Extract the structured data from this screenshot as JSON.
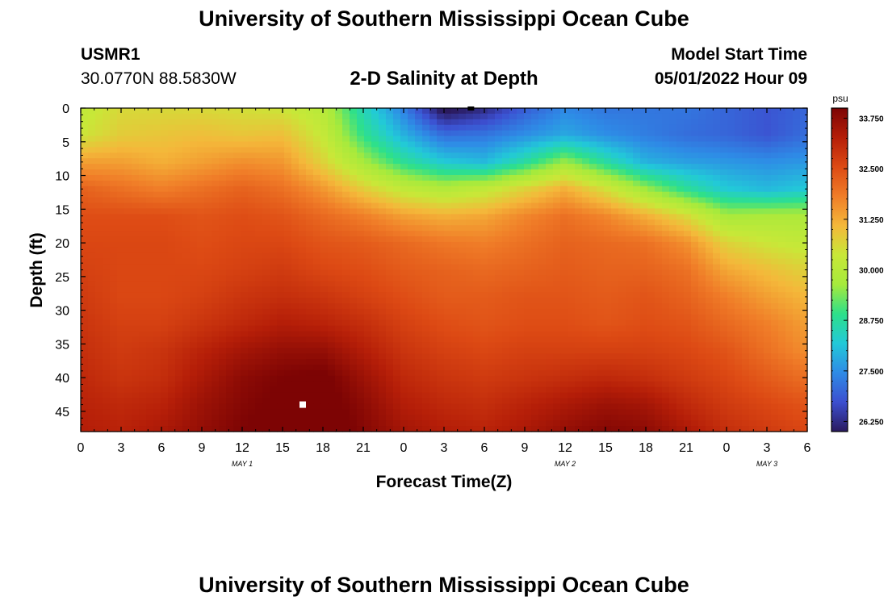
{
  "header": {
    "title": "University of Southern Mississippi Ocean Cube",
    "station_id": "USMR1",
    "station_coords": "30.0770N  88.5830W",
    "model_start_label": "Model Start Time",
    "model_start_value": "05/01/2022 Hour 09"
  },
  "footer": {
    "title": "University of Southern Mississippi Ocean Cube"
  },
  "chart_data": {
    "type": "heatmap",
    "title": "2-D Salinity at Depth",
    "xlabel": "Forecast Time(Z)",
    "ylabel": "Depth (ft)",
    "x_range_hours": [
      0,
      54
    ],
    "y_range_ft": [
      0,
      48
    ],
    "y_inverted": true,
    "x_ticks": [
      "0",
      "3",
      "6",
      "9",
      "12",
      "15",
      "18",
      "21",
      "0",
      "3",
      "6",
      "9",
      "12",
      "15",
      "18",
      "21",
      "0",
      "3",
      "6"
    ],
    "y_ticks": [
      "0",
      "5",
      "10",
      "15",
      "20",
      "25",
      "30",
      "35",
      "40",
      "45"
    ],
    "date_labels": [
      {
        "label": "MAY 1",
        "hour": 12
      },
      {
        "label": "MAY 2",
        "hour": 36
      },
      {
        "label": "MAY 3",
        "hour": 51
      }
    ],
    "colorbar": {
      "unit": "psu",
      "range": [
        26.0,
        34.0
      ],
      "ticks": [
        "33.750",
        "32.500",
        "31.250",
        "30.000",
        "28.750",
        "27.500",
        "26.250"
      ],
      "tick_values": [
        33.75,
        32.5,
        31.25,
        30.0,
        28.75,
        27.5,
        26.25
      ],
      "colors": [
        "#2a1a5e",
        "#3c4fd0",
        "#2e8be6",
        "#22c9d8",
        "#2ee08a",
        "#a6ea3c",
        "#c8e838",
        "#f4b83a",
        "#f07d28",
        "#dd4a14",
        "#b51e08",
        "#7d0404"
      ]
    },
    "salinity_grid": {
      "x_hours": [
        0,
        3,
        6,
        9,
        12,
        15,
        18,
        21,
        24,
        27,
        30,
        33,
        36,
        39,
        42,
        45,
        48,
        51,
        54
      ],
      "depth_ft": [
        0,
        4,
        8,
        12,
        16,
        20,
        24,
        28,
        32,
        36,
        40,
        44,
        48
      ],
      "values": [
        [
          30.2,
          30.6,
          30.6,
          30.6,
          30.5,
          30.4,
          30.0,
          28.5,
          27.3,
          25.8,
          26.2,
          26.9,
          27.4,
          27.2,
          27.2,
          27.2,
          27.0,
          26.8,
          27.0
        ],
        [
          30.4,
          30.8,
          30.9,
          31.0,
          30.9,
          31.0,
          30.3,
          28.9,
          27.9,
          27.1,
          27.2,
          27.5,
          27.8,
          27.5,
          27.3,
          27.1,
          27.0,
          26.8,
          27.1
        ],
        [
          31.4,
          31.4,
          31.2,
          31.4,
          31.6,
          31.5,
          30.7,
          29.7,
          28.8,
          28.2,
          28.0,
          28.7,
          29.6,
          28.7,
          27.9,
          27.7,
          27.6,
          27.5,
          27.6
        ],
        [
          32.2,
          32.0,
          31.8,
          32.0,
          32.2,
          32.0,
          31.5,
          30.8,
          30.2,
          29.9,
          30.2,
          30.7,
          31.2,
          30.5,
          29.6,
          28.8,
          28.2,
          28.0,
          28.2
        ],
        [
          32.5,
          32.5,
          32.5,
          32.4,
          32.5,
          32.4,
          32.1,
          31.8,
          31.4,
          31.2,
          31.3,
          31.7,
          32.0,
          31.7,
          31.2,
          30.6,
          29.7,
          29.8,
          29.8
        ],
        [
          32.6,
          32.6,
          32.6,
          32.5,
          32.6,
          32.6,
          32.4,
          32.3,
          32.1,
          31.9,
          31.8,
          32.0,
          32.2,
          32.1,
          32.0,
          31.6,
          30.7,
          30.4,
          30.2
        ],
        [
          32.7,
          32.6,
          32.6,
          32.6,
          32.7,
          32.8,
          32.6,
          32.5,
          32.3,
          32.2,
          32.1,
          32.2,
          32.3,
          32.2,
          32.2,
          32.0,
          31.3,
          31.0,
          30.7
        ],
        [
          32.8,
          32.6,
          32.6,
          32.7,
          32.9,
          33.0,
          32.9,
          32.7,
          32.5,
          32.3,
          32.3,
          32.4,
          32.4,
          32.3,
          32.4,
          32.2,
          31.8,
          31.4,
          31.1
        ],
        [
          32.9,
          32.7,
          32.7,
          32.9,
          33.1,
          33.3,
          33.2,
          33.0,
          32.7,
          32.5,
          32.4,
          32.5,
          32.5,
          32.4,
          32.5,
          32.4,
          32.1,
          31.8,
          31.4
        ],
        [
          33.0,
          32.8,
          32.9,
          33.2,
          33.5,
          33.7,
          33.7,
          33.3,
          32.9,
          32.7,
          32.6,
          32.7,
          32.7,
          32.7,
          32.7,
          32.6,
          32.4,
          32.0,
          31.6
        ],
        [
          33.1,
          32.9,
          33.0,
          33.4,
          33.8,
          34.0,
          34.1,
          33.6,
          33.1,
          32.9,
          32.8,
          32.9,
          33.0,
          33.1,
          33.0,
          32.8,
          32.6,
          32.3,
          32.0
        ],
        [
          33.2,
          33.1,
          33.2,
          33.6,
          33.9,
          34.1,
          34.2,
          33.8,
          33.3,
          33.1,
          33.0,
          33.2,
          33.4,
          33.6,
          33.5,
          33.1,
          32.8,
          32.6,
          32.4
        ],
        [
          33.3,
          33.2,
          33.4,
          33.7,
          34.0,
          34.2,
          34.3,
          33.9,
          33.5,
          33.3,
          33.2,
          33.4,
          33.7,
          33.9,
          33.8,
          33.4,
          33.0,
          32.8,
          32.6
        ]
      ]
    },
    "markers": [
      {
        "hour": 16.5,
        "depth_ft": 44,
        "color": "#ffffff"
      },
      {
        "hour": 29,
        "depth_ft": 0,
        "color": "#000000"
      }
    ]
  }
}
